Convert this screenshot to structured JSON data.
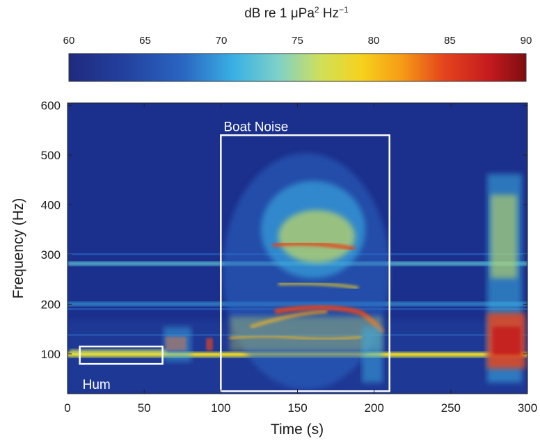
{
  "chart_data": {
    "type": "heatmap",
    "title": "",
    "colorbar": {
      "label_base": "dB re 1 μPa",
      "label_sup1": "2",
      "label_mid": " Hz",
      "label_sup2": "−1",
      "range": [
        60,
        90
      ],
      "ticks": [
        "60",
        "65",
        "70",
        "75",
        "80",
        "85",
        "90"
      ],
      "colormap": "jet",
      "placement": "top"
    },
    "xlabel": "Time (s)",
    "ylabel": "Frequency (Hz)",
    "xlim": [
      0,
      300
    ],
    "ylim": [
      20,
      605
    ],
    "xticks": [
      "0",
      "50",
      "100",
      "150",
      "200",
      "250",
      "300"
    ],
    "yticks": [
      "100",
      "200",
      "300",
      "400",
      "500",
      "600"
    ],
    "grid": false,
    "annotations": [
      {
        "label": "Boat Noise",
        "t": [
          100,
          210
        ],
        "f": [
          25,
          540
        ]
      },
      {
        "label": "Hum",
        "t": [
          8,
          62
        ],
        "f": [
          80,
          115
        ]
      }
    ]
  },
  "colors": {
    "background": "#1b2f8c",
    "annotation_box": "#ffffff",
    "annotation_text": "#ffffff"
  }
}
